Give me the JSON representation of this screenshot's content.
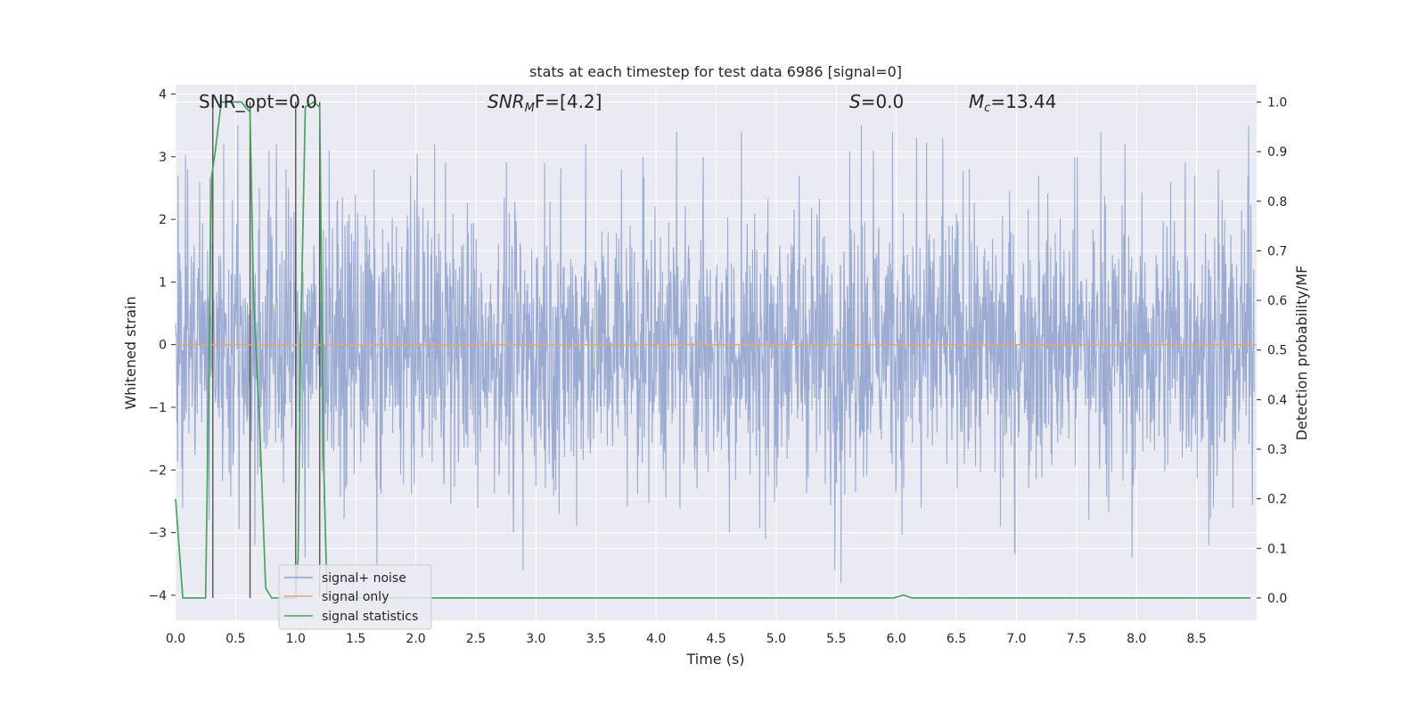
{
  "chart_data": {
    "type": "line",
    "title": "stats at each timestep for test data 6986 [signal=0]",
    "xlabel": "Time (s)",
    "ylabel_left": "Whitened strain",
    "ylabel_right": "Detection probability/MF",
    "xlim": [
      0.0,
      9.0
    ],
    "ylim_left": [
      -4.4,
      4.15
    ],
    "ylim_right": [
      -0.045,
      1.035
    ],
    "grid": true,
    "legend_position": "lower-left",
    "x_ticks": [
      0.0,
      0.5,
      1.0,
      1.5,
      2.0,
      2.5,
      3.0,
      3.5,
      4.0,
      4.5,
      5.0,
      5.5,
      6.0,
      6.5,
      7.0,
      7.5,
      8.0,
      8.5
    ],
    "x_tick_labels": [
      "0.0",
      "0.5",
      "1.0",
      "1.5",
      "2.0",
      "2.5",
      "3.0",
      "3.5",
      "4.0",
      "4.5",
      "5.0",
      "5.5",
      "6.0",
      "6.5",
      "7.0",
      "7.5",
      "8.0",
      "8.5"
    ],
    "y_left_ticks": [
      -4,
      -3,
      -2,
      -1,
      0,
      1,
      2,
      3,
      4
    ],
    "y_left_tick_labels": [
      "−4",
      "−3",
      "−2",
      "−1",
      "0",
      "1",
      "2",
      "3",
      "4"
    ],
    "y_right_ticks": [
      0.0,
      0.1,
      0.2,
      0.3,
      0.4,
      0.5,
      0.6,
      0.7,
      0.8,
      0.9,
      1.0
    ],
    "y_right_tick_labels": [
      "0.0",
      "0.1",
      "0.2",
      "0.3",
      "0.4",
      "0.5",
      "0.6",
      "0.7",
      "0.8",
      "0.9",
      "1.0"
    ],
    "annotations": {
      "snr_opt": "SNR_opt=0.0",
      "snr_mf_symbol": "SNR",
      "snr_mf_sub": "M",
      "snr_mf_rest": "F=[4.2]",
      "s_symbol": "S",
      "s_rest": "=0.0",
      "mc_symbol": "M",
      "mc_sub": "c",
      "mc_rest": "=13.44"
    },
    "series": [
      {
        "name": "signal+ noise",
        "color": "#8da0cb",
        "axis": "left",
        "noise_peaks": [
          {
            "x": 0.02,
            "y": 2.7
          },
          {
            "x": 0.06,
            "y": -2.6
          },
          {
            "x": 0.1,
            "y": 2.8
          },
          {
            "x": 0.2,
            "y": 2.6
          },
          {
            "x": 0.28,
            "y": -2.8
          },
          {
            "x": 0.4,
            "y": 3.2
          },
          {
            "x": 0.52,
            "y": 3.5
          },
          {
            "x": 0.62,
            "y": -2.2
          },
          {
            "x": 0.66,
            "y": -3.2
          },
          {
            "x": 0.78,
            "y": 3.1
          },
          {
            "x": 0.84,
            "y": 3.2
          },
          {
            "x": 0.9,
            "y": -2.2
          },
          {
            "x": 0.92,
            "y": 2.8
          },
          {
            "x": 1.08,
            "y": -3.4
          },
          {
            "x": 1.2,
            "y": 3.0
          },
          {
            "x": 1.28,
            "y": 3.1
          },
          {
            "x": 1.42,
            "y": -2.3
          },
          {
            "x": 1.5,
            "y": 2.4
          },
          {
            "x": 1.68,
            "y": -3.6
          },
          {
            "x": 1.96,
            "y": 2.7
          },
          {
            "x": 2.16,
            "y": 3.2
          },
          {
            "x": 2.25,
            "y": 2.9
          },
          {
            "x": 2.52,
            "y": -2.6
          },
          {
            "x": 2.82,
            "y": -3.0
          },
          {
            "x": 2.9,
            "y": -3.6
          },
          {
            "x": 3.08,
            "y": 2.9
          },
          {
            "x": 3.2,
            "y": -2.7
          },
          {
            "x": 3.42,
            "y": 3.2
          },
          {
            "x": 3.72,
            "y": 2.8
          },
          {
            "x": 3.9,
            "y": 3.0
          },
          {
            "x": 4.18,
            "y": 3.4
          },
          {
            "x": 4.35,
            "y": -2.3
          },
          {
            "x": 4.4,
            "y": 3.0
          },
          {
            "x": 4.62,
            "y": -3.0
          },
          {
            "x": 4.72,
            "y": 3.4
          },
          {
            "x": 4.92,
            "y": -3.1
          },
          {
            "x": 5.2,
            "y": 2.7
          },
          {
            "x": 5.5,
            "y": -3.6
          },
          {
            "x": 5.55,
            "y": -3.8
          },
          {
            "x": 5.72,
            "y": 3.5
          },
          {
            "x": 5.82,
            "y": 3.1
          },
          {
            "x": 5.98,
            "y": 3.4
          },
          {
            "x": 6.18,
            "y": 3.3
          },
          {
            "x": 6.22,
            "y": -2.6
          },
          {
            "x": 6.4,
            "y": 3.3
          },
          {
            "x": 6.52,
            "y": -2.3
          },
          {
            "x": 6.62,
            "y": 2.8
          },
          {
            "x": 6.88,
            "y": -2.9
          },
          {
            "x": 7.0,
            "y": -3.3
          },
          {
            "x": 7.2,
            "y": 2.7
          },
          {
            "x": 7.5,
            "y": 3.0
          },
          {
            "x": 7.62,
            "y": -2.8
          },
          {
            "x": 7.72,
            "y": 3.4
          },
          {
            "x": 7.92,
            "y": 3.2
          },
          {
            "x": 7.98,
            "y": -3.4
          },
          {
            "x": 8.3,
            "y": 2.6
          },
          {
            "x": 8.42,
            "y": 2.9
          },
          {
            "x": 8.5,
            "y": 2.7
          },
          {
            "x": 8.62,
            "y": -3.2
          },
          {
            "x": 8.7,
            "y": 2.8
          },
          {
            "x": 8.82,
            "y": -2.6
          },
          {
            "x": 8.95,
            "y": 3.5
          }
        ],
        "typical_amplitude": 1.7
      },
      {
        "name": "signal only",
        "color": "#e5a47a",
        "axis": "left",
        "x": [
          0.0,
          9.0
        ],
        "y": [
          0.0,
          0.0
        ]
      },
      {
        "name": "signal statistics",
        "color": "#4aa35c",
        "axis": "right",
        "x": [
          0.0,
          0.03,
          0.06,
          0.1,
          0.2,
          0.25,
          0.3,
          0.33,
          0.38,
          0.45,
          0.55,
          0.58,
          0.62,
          0.65,
          0.7,
          0.75,
          0.8,
          0.9,
          0.95,
          1.0,
          1.02,
          1.04,
          1.08,
          1.15,
          1.2,
          1.23,
          1.26,
          1.3,
          1.5,
          2.0,
          3.0,
          4.0,
          5.0,
          5.98,
          6.06,
          6.13,
          7.0,
          8.0,
          8.95
        ],
        "y": [
          0.2,
          0.1,
          0.0,
          0.0,
          0.0,
          0.0,
          0.85,
          0.9,
          1.0,
          1.0,
          1.0,
          0.99,
          0.98,
          0.6,
          0.35,
          0.02,
          0.0,
          0.0,
          0.0,
          0.0,
          0.08,
          0.5,
          0.99,
          1.0,
          0.99,
          0.3,
          0.01,
          0.0,
          0.0,
          0.0,
          0.0,
          0.0,
          0.0,
          0.0,
          0.006,
          0.0,
          0.0,
          0.0,
          0.0
        ]
      }
    ],
    "vertical_lines": [
      0.31,
      0.62,
      1.0,
      1.2
    ],
    "vertical_line_color": "#555555"
  },
  "colors": {
    "axes_background": "#eaeaf2",
    "grid": "#ffffff",
    "text": "#262626"
  }
}
